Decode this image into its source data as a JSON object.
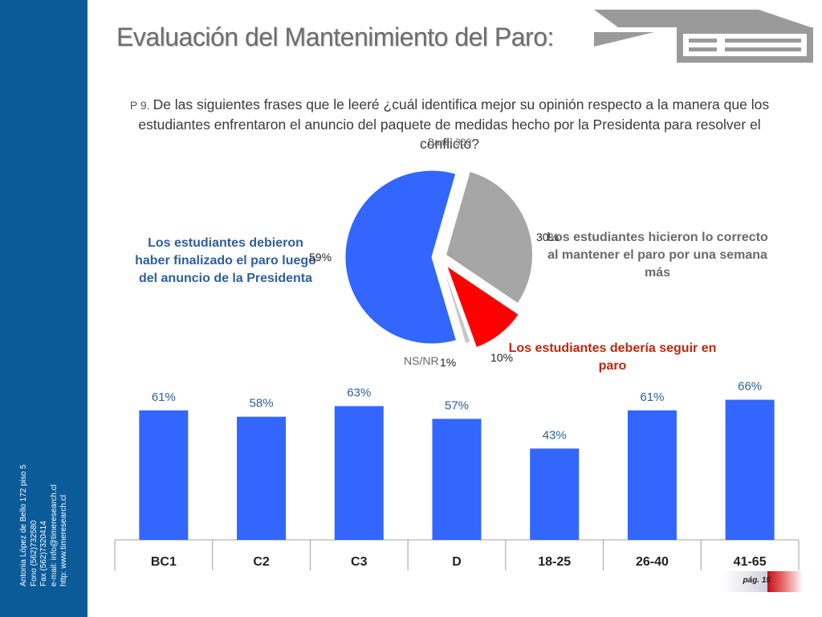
{
  "title": "Evaluación del Mantenimiento del Paro:",
  "question": {
    "number": "P 9.",
    "text": "De las siguientes frases que le leeré ¿cuál identifica mejor su opinión respecto a la manera que los estudiantes enfrentaron el anuncio del paquete de medidas hecho por la Presidenta para resolver el conflicto?"
  },
  "base": "Base: 300",
  "sidebar": {
    "contact": [
      "Antonia López de Bello 172 piso 5",
      "Fono (562)732580",
      "Fax (562)7320414",
      "e-mail: info@timeresearch.cl",
      "http: www.timeresearch.cl"
    ]
  },
  "footer": {
    "page": "pág. 15"
  },
  "colors": {
    "sidebar": "#0b5b99",
    "blue": "#3366ff",
    "gray": "#a6a6a6",
    "red": "#ff0000"
  },
  "chart_data": [
    {
      "type": "pie",
      "slices": [
        {
          "label": "Los estudiantes debieron haber finalizado el paro luego del anuncio de la Presidenta",
          "value": 59,
          "value_label": "59%",
          "color": "#3366ff"
        },
        {
          "label": "Los estudiantes hicieron lo correcto al mantener el paro por una semana más",
          "value": 30,
          "value_label": "30%",
          "color": "#a6a6a6"
        },
        {
          "label": "Los estudiantes debería seguir en paro",
          "value": 10,
          "value_label": "10%",
          "color": "#ff0000"
        },
        {
          "label": "NS/NR",
          "value": 1,
          "value_label": "1%",
          "color": "#c8c8c8"
        }
      ]
    },
    {
      "type": "bar",
      "categories": [
        "BC1",
        "C2",
        "C3",
        "D",
        "18-25",
        "26-40",
        "41-65"
      ],
      "values": [
        61,
        58,
        63,
        57,
        43,
        61,
        66
      ],
      "value_labels": [
        "61%",
        "58%",
        "63%",
        "57%",
        "43%",
        "61%",
        "66%"
      ],
      "ylim": [
        0,
        70
      ],
      "color": "#3366ff",
      "grid": false
    }
  ]
}
